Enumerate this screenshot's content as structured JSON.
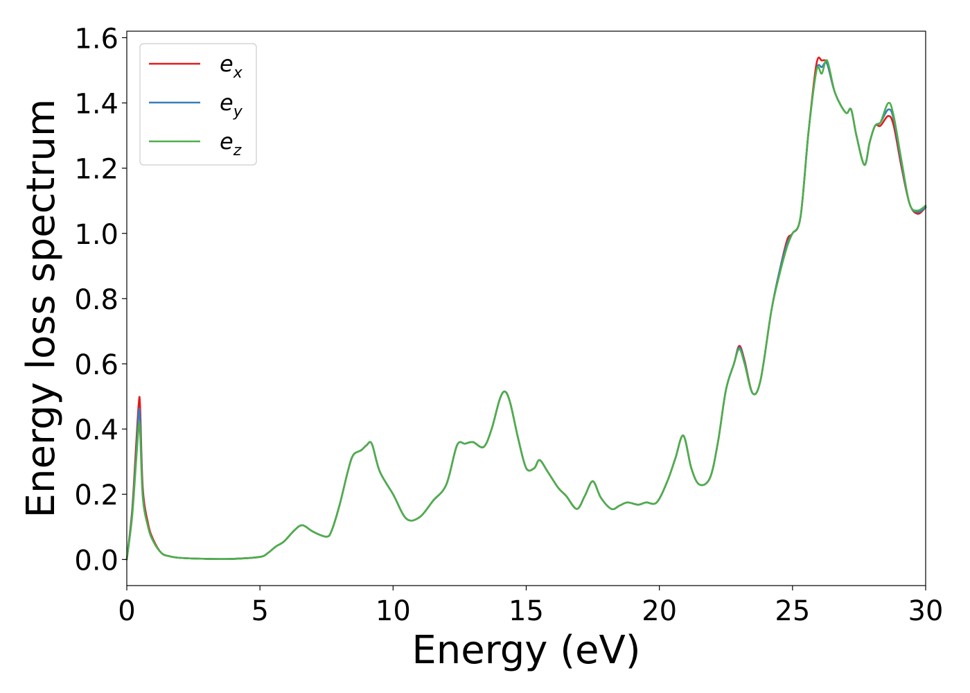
{
  "chart_data": {
    "type": "line",
    "title": "",
    "xlabel": "Energy (eV)",
    "ylabel": "Energy loss spectrum",
    "xlim": [
      0,
      30
    ],
    "ylim": [
      -0.08,
      1.62
    ],
    "xticks": [
      0,
      5,
      10,
      15,
      20,
      25,
      30
    ],
    "xtick_labels": [
      "0",
      "5",
      "10",
      "15",
      "20",
      "25",
      "30"
    ],
    "yticks": [
      0.0,
      0.2,
      0.4,
      0.6,
      0.8,
      1.0,
      1.2,
      1.4,
      1.6
    ],
    "ytick_labels": [
      "0.0",
      "0.2",
      "0.4",
      "0.6",
      "0.8",
      "1.0",
      "1.2",
      "1.4",
      "1.6"
    ],
    "grid": false,
    "legend_position": "top-left",
    "x": [
      0,
      0.2,
      0.35,
      0.45,
      0.5,
      0.6,
      0.8,
      1.0,
      1.3,
      1.6,
      2.0,
      3.0,
      4.0,
      5.0,
      5.3,
      5.6,
      5.9,
      6.3,
      6.6,
      7.0,
      7.5,
      7.7,
      8.0,
      8.3,
      8.5,
      8.8,
      9.0,
      9.2,
      9.5,
      10.0,
      10.5,
      11.0,
      11.5,
      12.0,
      12.4,
      12.7,
      13.0,
      13.4,
      13.7,
      14.0,
      14.2,
      14.4,
      14.7,
      15.0,
      15.3,
      15.5,
      15.8,
      16.2,
      16.5,
      16.9,
      17.2,
      17.5,
      17.8,
      18.2,
      18.5,
      18.8,
      19.2,
      19.5,
      19.9,
      20.3,
      20.6,
      20.9,
      21.2,
      21.5,
      21.9,
      22.2,
      22.5,
      22.8,
      23.0,
      23.2,
      23.5,
      23.8,
      24.2,
      24.5,
      24.8,
      25.0,
      25.3,
      25.6,
      25.9,
      26.1,
      26.3,
      26.6,
      27.0,
      27.2,
      27.4,
      27.7,
      27.9,
      28.1,
      28.3,
      28.6,
      28.8,
      29.1,
      29.4,
      29.7,
      30.0
    ],
    "series": [
      {
        "name": "e_x",
        "color": "#e41a1c",
        "values": [
          0.0,
          0.15,
          0.35,
          0.48,
          0.47,
          0.22,
          0.11,
          0.06,
          0.02,
          0.01,
          0.005,
          0.002,
          0.002,
          0.008,
          0.02,
          0.04,
          0.055,
          0.09,
          0.105,
          0.085,
          0.07,
          0.09,
          0.17,
          0.27,
          0.32,
          0.335,
          0.35,
          0.355,
          0.27,
          0.2,
          0.125,
          0.13,
          0.18,
          0.23,
          0.35,
          0.355,
          0.36,
          0.345,
          0.4,
          0.49,
          0.515,
          0.48,
          0.37,
          0.28,
          0.28,
          0.305,
          0.27,
          0.22,
          0.195,
          0.155,
          0.195,
          0.24,
          0.19,
          0.155,
          0.165,
          0.175,
          0.168,
          0.175,
          0.175,
          0.24,
          0.31,
          0.38,
          0.28,
          0.23,
          0.25,
          0.36,
          0.52,
          0.6,
          0.655,
          0.61,
          0.51,
          0.55,
          0.76,
          0.88,
          0.98,
          1.0,
          1.05,
          1.31,
          1.52,
          1.53,
          1.52,
          1.43,
          1.37,
          1.38,
          1.3,
          1.21,
          1.28,
          1.33,
          1.33,
          1.36,
          1.33,
          1.2,
          1.09,
          1.06,
          1.08
        ]
      },
      {
        "name": "e_y",
        "color": "#377eb8",
        "values": [
          0.0,
          0.14,
          0.32,
          0.45,
          0.43,
          0.2,
          0.1,
          0.055,
          0.02,
          0.01,
          0.005,
          0.002,
          0.002,
          0.008,
          0.02,
          0.04,
          0.055,
          0.09,
          0.105,
          0.085,
          0.07,
          0.09,
          0.17,
          0.27,
          0.32,
          0.335,
          0.35,
          0.355,
          0.27,
          0.2,
          0.125,
          0.13,
          0.18,
          0.23,
          0.35,
          0.355,
          0.36,
          0.345,
          0.4,
          0.49,
          0.515,
          0.48,
          0.37,
          0.28,
          0.28,
          0.305,
          0.27,
          0.22,
          0.195,
          0.155,
          0.195,
          0.24,
          0.19,
          0.155,
          0.165,
          0.175,
          0.168,
          0.175,
          0.175,
          0.24,
          0.31,
          0.38,
          0.28,
          0.23,
          0.25,
          0.36,
          0.52,
          0.6,
          0.65,
          0.605,
          0.51,
          0.55,
          0.76,
          0.88,
          0.97,
          1.0,
          1.05,
          1.31,
          1.5,
          1.51,
          1.52,
          1.43,
          1.37,
          1.38,
          1.3,
          1.21,
          1.28,
          1.33,
          1.34,
          1.38,
          1.35,
          1.21,
          1.09,
          1.065,
          1.08
        ]
      },
      {
        "name": "e_z",
        "color": "#4daf4a",
        "values": [
          0.0,
          0.13,
          0.3,
          0.41,
          0.39,
          0.19,
          0.1,
          0.055,
          0.02,
          0.01,
          0.005,
          0.002,
          0.002,
          0.008,
          0.02,
          0.04,
          0.055,
          0.09,
          0.105,
          0.085,
          0.07,
          0.09,
          0.17,
          0.27,
          0.32,
          0.335,
          0.35,
          0.355,
          0.27,
          0.2,
          0.125,
          0.13,
          0.18,
          0.23,
          0.35,
          0.355,
          0.36,
          0.345,
          0.4,
          0.49,
          0.515,
          0.48,
          0.37,
          0.28,
          0.28,
          0.305,
          0.27,
          0.22,
          0.195,
          0.155,
          0.195,
          0.24,
          0.19,
          0.155,
          0.165,
          0.175,
          0.168,
          0.175,
          0.175,
          0.24,
          0.31,
          0.38,
          0.28,
          0.23,
          0.25,
          0.36,
          0.52,
          0.6,
          0.645,
          0.6,
          0.51,
          0.55,
          0.76,
          0.87,
          0.96,
          1.0,
          1.05,
          1.31,
          1.5,
          1.49,
          1.53,
          1.43,
          1.37,
          1.38,
          1.3,
          1.21,
          1.28,
          1.33,
          1.34,
          1.4,
          1.36,
          1.22,
          1.09,
          1.07,
          1.085
        ]
      }
    ],
    "legend": [
      {
        "base": "e",
        "sub": "x"
      },
      {
        "base": "e",
        "sub": "y"
      },
      {
        "base": "e",
        "sub": "z"
      }
    ]
  }
}
